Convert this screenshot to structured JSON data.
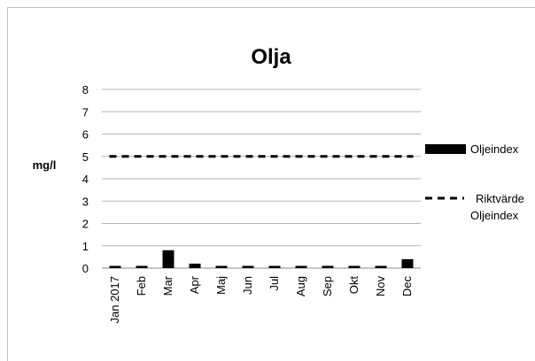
{
  "chart_data": {
    "type": "bar",
    "title": "Olja",
    "ylabel": "mg/l",
    "xlabel": "",
    "ylim": [
      0,
      8
    ],
    "yticks": [
      0,
      1,
      2,
      3,
      4,
      5,
      6,
      7,
      8
    ],
    "grid": true,
    "legend_position": "right",
    "categories": [
      "Jan 2017",
      "Feb",
      "Mar",
      "Apr",
      "Maj",
      "Jun",
      "Jul",
      "Aug",
      "Sep",
      "Okt",
      "Nov",
      "Dec"
    ],
    "series": [
      {
        "name": "Oljeindex",
        "kind": "bar",
        "color": "#000000",
        "values": [
          0.1,
          0.1,
          0.8,
          0.2,
          0.1,
          0.1,
          0.1,
          0.1,
          0.1,
          0.1,
          0.1,
          0.4
        ]
      },
      {
        "name": "Riktvärde Oljeindex",
        "kind": "dashed-line",
        "color": "#000000",
        "values": [
          5,
          5,
          5,
          5,
          5,
          5,
          5,
          5,
          5,
          5,
          5,
          5
        ]
      }
    ],
    "legend": {
      "bar_label": "Oljeindex",
      "line_label_1": "Riktvärde",
      "line_label_2": "Oljeindex"
    }
  }
}
